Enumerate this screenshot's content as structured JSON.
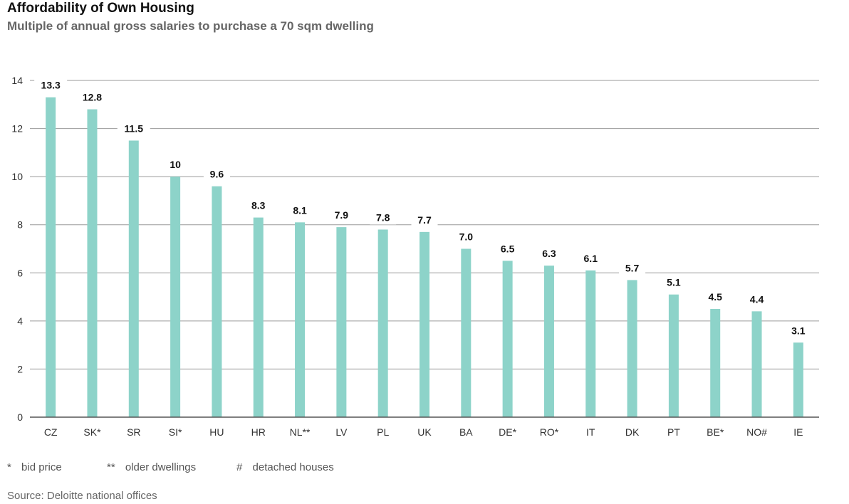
{
  "title": "Affordability of Own Housing",
  "subtitle": "Multiple of annual gross salaries to purchase a 70 sqm dwelling",
  "legend": [
    {
      "symbol": "*",
      "text": "bid price"
    },
    {
      "symbol": "**",
      "text": "older dwellings"
    },
    {
      "symbol": "#",
      "text": "detached houses"
    }
  ],
  "source": "Source: Deloitte national offices",
  "colors": {
    "bar": "#8dd3c9",
    "grid": "#9a9a9a",
    "axis": "#555555"
  },
  "chart_data": {
    "type": "bar",
    "title": "Affordability of Own Housing",
    "subtitle": "Multiple of annual gross salaries to purchase a 70 sqm dwelling",
    "categories": [
      "CZ",
      "SK*",
      "SR",
      "SI*",
      "HU",
      "HR",
      "NL**",
      "LV",
      "PL",
      "UK",
      "BA",
      "DE*",
      "RO*",
      "IT",
      "DK",
      "PT",
      "BE*",
      "NO#",
      "IE"
    ],
    "values": [
      13.3,
      12.8,
      11.5,
      10,
      9.6,
      8.3,
      8.1,
      7.9,
      7.8,
      7.7,
      7.0,
      6.5,
      6.3,
      6.1,
      5.7,
      5.1,
      4.5,
      4.4,
      3.1
    ],
    "value_labels": [
      "13.3",
      "12.8",
      "11.5",
      "10",
      "9.6",
      "8.3",
      "8.1",
      "7.9",
      "7.8",
      "7.7",
      "7.0",
      "6.5",
      "6.3",
      "6.1",
      "5.7",
      "5.1",
      "4.5",
      "4.4",
      "3.1"
    ],
    "xlabel": "",
    "ylabel": "",
    "ylim": [
      0,
      14
    ],
    "yticks": [
      0,
      2,
      4,
      6,
      8,
      10,
      12,
      14
    ],
    "grid": true,
    "legend": "none"
  }
}
